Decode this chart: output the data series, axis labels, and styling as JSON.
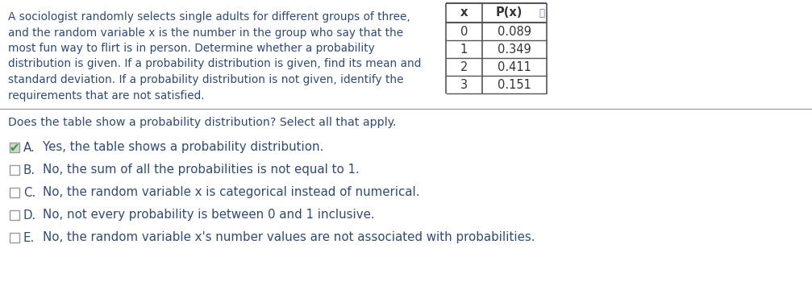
{
  "paragraph_lines": [
    "A sociologist randomly selects single adults for different groups of three,",
    "and the random variable x is the number in the group who say that the",
    "most fun way to flirt is in person. Determine whether a probability",
    "distribution is given. If a probability distribution is given, find its mean and",
    "standard deviation. If a probability distribution is not given, identify the",
    "requirements that are not satisfied."
  ],
  "table_x_values": [
    "0",
    "1",
    "2",
    "3"
  ],
  "table_p_values": [
    "0.089",
    "0.349",
    "0.411",
    "0.151"
  ],
  "table_header_x": "x",
  "table_header_px": "P(x)",
  "question_text": "Does the table show a probability distribution? Select all that apply.",
  "options": [
    {
      "letter": "A.",
      "text": "Yes, the table shows a probability distribution.",
      "checked": true
    },
    {
      "letter": "B.",
      "text": "No, the sum of all the probabilities is not equal to 1.",
      "checked": false
    },
    {
      "letter": "C.",
      "text": "No, the random variable x is categorical instead of numerical.",
      "checked": false
    },
    {
      "letter": "D.",
      "text": "No, not every probability is between 0 and 1 inclusive.",
      "checked": false
    },
    {
      "letter": "E.",
      "text": "No, the random variable x's number values are not associated with probabilities.",
      "checked": false
    }
  ],
  "text_color": "#2e4a7a",
  "black_color": "#333333",
  "bg_color": "#ffffff",
  "separator_color": "#999999",
  "table_border_color": "#555555",
  "checkbox_color": "#999999",
  "checkmark_color": "#3a9a3a",
  "checked_bg_color": "#d0d8d0",
  "font_size_para": 9.8,
  "font_size_table": 10.5,
  "font_size_question": 10.2,
  "font_size_options": 10.8
}
